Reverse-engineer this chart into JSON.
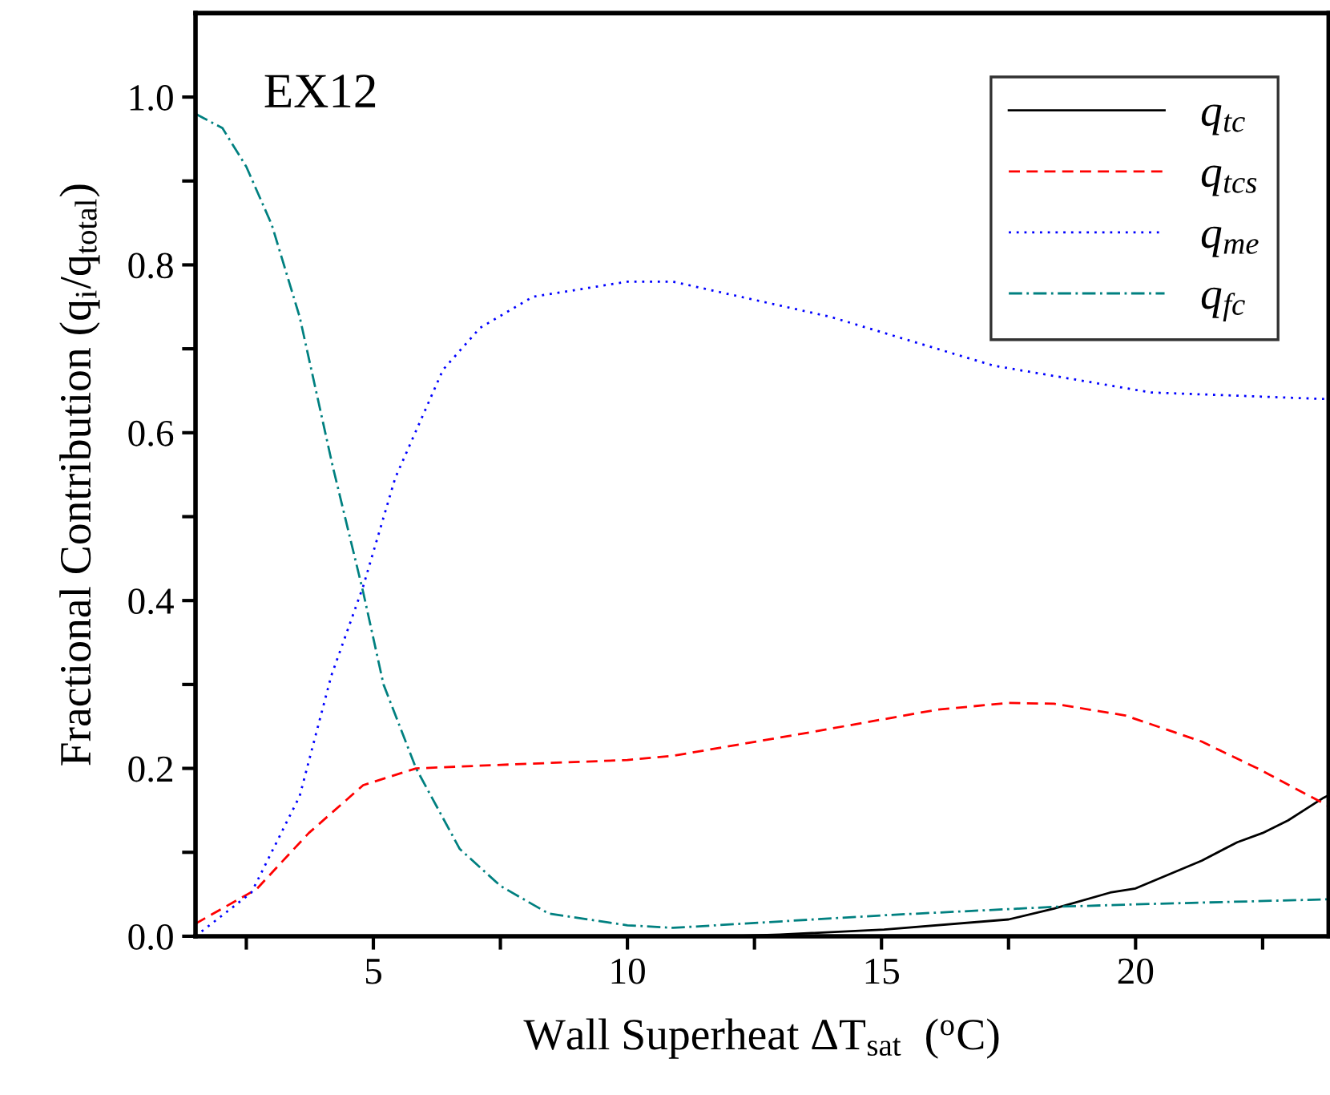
{
  "chart_data": {
    "type": "line",
    "xlabel": "Wall Superheat ΔT$_{sat}$  ($^{o}$C)",
    "ylabel": "Fractional Contribution (q$_{i}$/q$_{total}$)",
    "annotations": [
      "EX12"
    ],
    "xlim": [
      1.5,
      23.8
    ],
    "ylim": [
      0,
      1.1
    ],
    "xticks": [
      {
        "value": 2.5,
        "label": null
      },
      5,
      {
        "value": 7.5,
        "label": null
      },
      10,
      {
        "value": 12.5,
        "label": null
      },
      15,
      {
        "value": 17.5,
        "label": null
      },
      20,
      {
        "value": 22.5,
        "label": null
      }
    ],
    "yticks": [
      {
        "value": 0,
        "label": "0.0"
      },
      {
        "value": 0.1,
        "label": null
      },
      0.2,
      {
        "value": 0.3,
        "label": null
      },
      0.4,
      {
        "value": 0.5,
        "label": null
      },
      0.6,
      {
        "value": 0.7,
        "label": null
      },
      0.8,
      {
        "value": 0.9,
        "label": null
      },
      {
        "value": 1,
        "label": "1.0"
      }
    ],
    "grid": false,
    "legend": "top right",
    "marker": "none",
    "series": [
      {
        "name": "q$_{tc}$",
        "color": "#000000",
        "line_style": "solid",
        "x": [
          1.5,
          5,
          10,
          12,
          13,
          15.05,
          17.5,
          18.4,
          19.5,
          20,
          21.3,
          22,
          22.5,
          23,
          23.7,
          23.8
        ],
        "values": [
          0,
          0,
          0,
          0,
          0.002,
          0.008,
          0.02,
          0.033,
          0.052,
          0.057,
          0.09,
          0.112,
          0.123,
          0.138,
          0.165,
          0.168
        ]
      },
      {
        "name": "q$_{tcs}$",
        "color": "#ff0000",
        "line_style": "dashed",
        "x": [
          1.5,
          2.7,
          3.73,
          4.8,
          5.84,
          7.4,
          10,
          10.9,
          13.5,
          16.1,
          17.5,
          18.4,
          19.8,
          21.3,
          22.4,
          23.8
        ],
        "values": [
          0.015,
          0.056,
          0.123,
          0.18,
          0.2,
          0.204,
          0.21,
          0.215,
          0.242,
          0.27,
          0.278,
          0.277,
          0.263,
          0.232,
          0.2,
          0.155
        ]
      },
      {
        "name": "q$_{me}$",
        "color": "#0000ff",
        "line_style": "dotted",
        "x": [
          1.5,
          2.6,
          3.55,
          4.17,
          4.8,
          5.43,
          6.37,
          7.1,
          8.14,
          10,
          10.9,
          14,
          17.2,
          20.3,
          23.8
        ],
        "values": [
          0.0,
          0.052,
          0.167,
          0.31,
          0.417,
          0.546,
          0.675,
          0.725,
          0.762,
          0.78,
          0.78,
          0.738,
          0.68,
          0.648,
          0.64
        ]
      },
      {
        "name": "q$_{fc}$",
        "color": "#008080",
        "line_style": "dashdot",
        "x": [
          1.5,
          2.03,
          2.5,
          3.0,
          3.55,
          4.2,
          4.8,
          5.2,
          5.84,
          6.7,
          7.5,
          8.45,
          10,
          10.9,
          15.05,
          18.4,
          20,
          23.8
        ],
        "values": [
          0.98,
          0.963,
          0.917,
          0.848,
          0.738,
          0.56,
          0.41,
          0.3,
          0.2,
          0.104,
          0.06,
          0.027,
          0.013,
          0.01,
          0.025,
          0.035,
          0.038,
          0.044
        ]
      }
    ]
  }
}
